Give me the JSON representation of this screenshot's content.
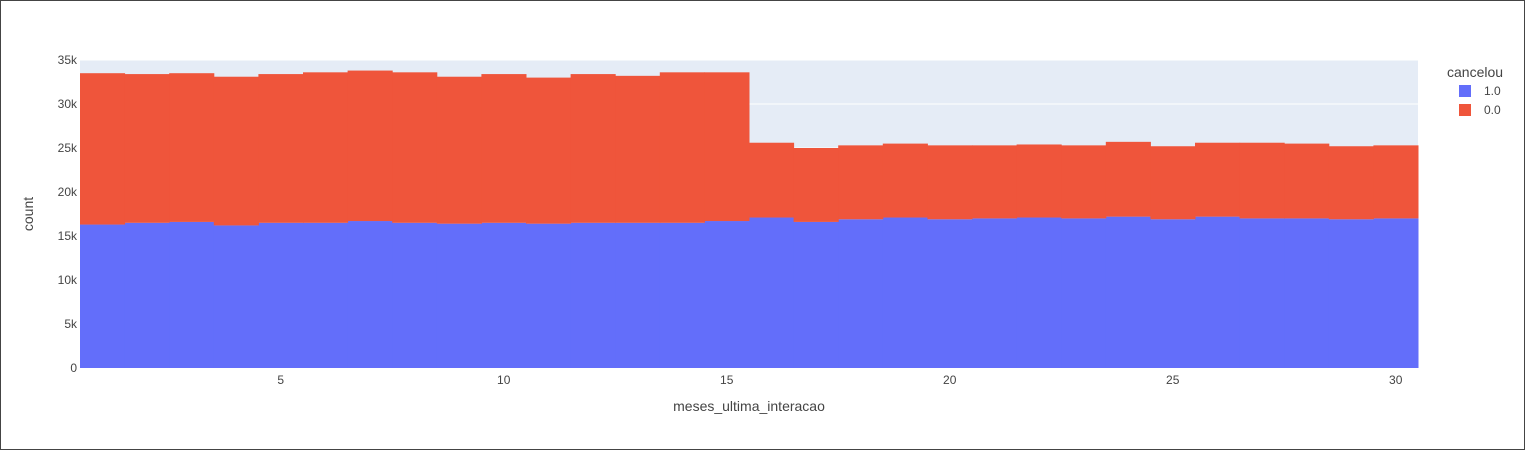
{
  "chart_data": {
    "type": "bar",
    "barmode": "stack",
    "xlabel": "meses_ultima_interacao",
    "ylabel": "count",
    "xlim": [
      0.5,
      30.5
    ],
    "ylim": [
      0,
      35000
    ],
    "x": [
      1,
      2,
      3,
      4,
      5,
      6,
      7,
      8,
      9,
      10,
      11,
      12,
      13,
      14,
      15,
      16,
      17,
      18,
      19,
      20,
      21,
      22,
      23,
      24,
      25,
      26,
      27,
      28,
      29,
      30
    ],
    "x_ticks": [
      5,
      10,
      15,
      20,
      25,
      30
    ],
    "x_tick_labels": [
      "5",
      "10",
      "15",
      "20",
      "25",
      "30"
    ],
    "y_ticks": [
      0,
      5000,
      10000,
      15000,
      20000,
      25000,
      30000,
      35000
    ],
    "y_tick_labels": [
      "0",
      "5k",
      "10k",
      "15k",
      "20k",
      "25k",
      "30k",
      "35k"
    ],
    "grid": true,
    "legend_title": "cancelou",
    "legend_position": "top-right",
    "series": [
      {
        "name": "1.0",
        "color": "#636efa",
        "values": [
          16300,
          16500,
          16600,
          16200,
          16500,
          16500,
          16700,
          16500,
          16400,
          16500,
          16400,
          16500,
          16500,
          16500,
          16700,
          17100,
          16600,
          16900,
          17100,
          16900,
          17000,
          17100,
          17000,
          17200,
          16900,
          17200,
          17000,
          17000,
          16900,
          17000
        ]
      },
      {
        "name": "0.0",
        "color": "#ef553b",
        "values": [
          17200,
          16900,
          16900,
          16900,
          16900,
          17100,
          17100,
          17100,
          16700,
          16900,
          16600,
          16900,
          16700,
          17100,
          16900,
          8500,
          8400,
          8400,
          8400,
          8400,
          8300,
          8300,
          8300,
          8500,
          8300,
          8400,
          8600,
          8500,
          8300,
          8300
        ]
      }
    ]
  }
}
